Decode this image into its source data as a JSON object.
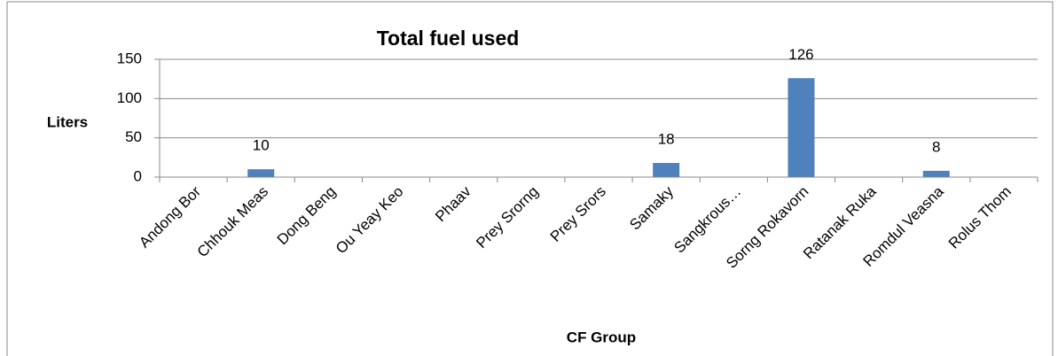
{
  "chart_data": {
    "type": "bar",
    "title": "Total fuel used",
    "y_label": "Liters",
    "x_label": "CF Group",
    "categories": [
      "Andong Bor",
      "Chhouk Meas",
      "Dong Beng",
      "Ou Yeay Keo",
      "Phaav",
      "Prey Srorng",
      "Prey Srors",
      "Samaky",
      "Sangkrous…",
      "Sorng Rokavorn",
      "Ratanak Ruka",
      "Romdul Veasna",
      "Rolus Thom"
    ],
    "values": [
      0,
      10,
      0,
      0,
      0,
      0,
      0,
      18,
      0,
      126,
      0,
      8,
      0
    ],
    "color": "#4f81bd",
    "ylim": [
      0,
      150
    ],
    "yticks": [
      0,
      50,
      100,
      150
    ],
    "grid": true
  }
}
